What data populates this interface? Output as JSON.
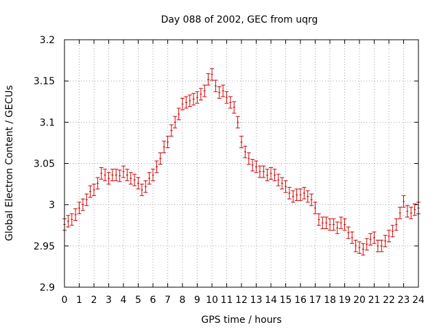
{
  "chart_data": {
    "type": "scatter",
    "title": "Day 088 of 2002, GEC from uqrg",
    "xlabel": "GPS time / hours",
    "ylabel": "Global Electron Content / GECUs",
    "xlim": [
      0,
      24
    ],
    "ylim": [
      2.9,
      3.2
    ],
    "xticks": [
      0,
      1,
      2,
      3,
      4,
      5,
      6,
      7,
      8,
      9,
      10,
      11,
      12,
      13,
      14,
      15,
      16,
      17,
      18,
      19,
      20,
      21,
      22,
      23,
      24
    ],
    "yticks": [
      2.9,
      2.95,
      3,
      3.05,
      3.1,
      3.15,
      3.2
    ],
    "ytick_labels": [
      "2.9",
      "2.95",
      "3",
      "3.05",
      "3.1",
      "3.15",
      "3.2"
    ],
    "grid": true,
    "error": 0.007,
    "series": [
      {
        "color": "#cc0000",
        "x": [
          0,
          0.25,
          0.5,
          0.75,
          1,
          1.25,
          1.5,
          1.75,
          2,
          2.25,
          2.5,
          2.75,
          3,
          3.25,
          3.5,
          3.75,
          4,
          4.25,
          4.5,
          4.75,
          5,
          5.25,
          5.5,
          5.75,
          6,
          6.25,
          6.5,
          6.75,
          7,
          7.25,
          7.5,
          7.75,
          8,
          8.25,
          8.5,
          8.75,
          9,
          9.25,
          9.5,
          9.75,
          10,
          10.25,
          10.5,
          10.75,
          11,
          11.25,
          11.5,
          11.75,
          12,
          12.25,
          12.5,
          12.75,
          13,
          13.25,
          13.5,
          13.75,
          14,
          14.25,
          14.5,
          14.75,
          15,
          15.25,
          15.5,
          15.75,
          16,
          16.25,
          16.5,
          16.75,
          17,
          17.25,
          17.5,
          17.75,
          18,
          18.25,
          18.5,
          18.75,
          19,
          19.25,
          19.5,
          19.75,
          20,
          20.25,
          20.5,
          20.75,
          21,
          21.25,
          21.5,
          21.75,
          22,
          22.25,
          22.5,
          22.75,
          23,
          23.25,
          23.5,
          23.75,
          24
        ],
        "y": [
          2.976,
          2.98,
          2.982,
          2.988,
          2.996,
          3.0,
          3.006,
          3.016,
          3.018,
          3.026,
          3.038,
          3.036,
          3.032,
          3.036,
          3.036,
          3.035,
          3.04,
          3.036,
          3.032,
          3.03,
          3.026,
          3.018,
          3.022,
          3.032,
          3.036,
          3.046,
          3.056,
          3.07,
          3.076,
          3.09,
          3.1,
          3.11,
          3.122,
          3.124,
          3.126,
          3.128,
          3.13,
          3.134,
          3.138,
          3.152,
          3.158,
          3.144,
          3.136,
          3.138,
          3.13,
          3.124,
          3.118,
          3.1,
          3.076,
          3.064,
          3.056,
          3.048,
          3.046,
          3.04,
          3.04,
          3.036,
          3.038,
          3.036,
          3.03,
          3.026,
          3.022,
          3.014,
          3.01,
          3.012,
          3.012,
          3.014,
          3.01,
          3.006,
          2.996,
          2.982,
          2.978,
          2.978,
          2.976,
          2.976,
          2.972,
          2.978,
          2.976,
          2.966,
          2.96,
          2.95,
          2.948,
          2.946,
          2.952,
          2.958,
          2.96,
          2.95,
          2.95,
          2.956,
          2.962,
          2.968,
          2.976,
          2.99,
          3.004,
          2.992,
          2.99,
          2.994,
          2.996
        ]
      }
    ]
  }
}
